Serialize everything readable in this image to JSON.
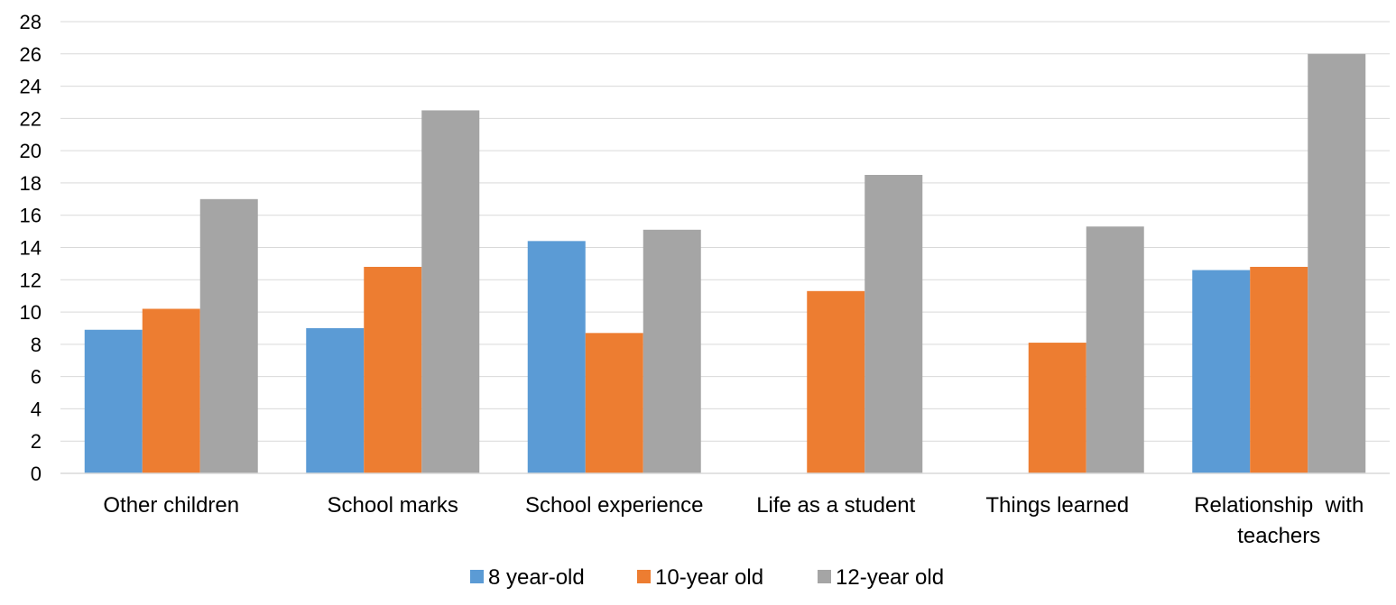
{
  "chart_data": {
    "type": "bar",
    "title": "",
    "xlabel": "",
    "ylabel": "",
    "ylim": [
      0,
      28
    ],
    "yticks": [
      0,
      2,
      4,
      6,
      8,
      10,
      12,
      14,
      16,
      18,
      20,
      22,
      24,
      26,
      28
    ],
    "grid": true,
    "legend_position": "bottom",
    "categories": [
      [
        "Other children"
      ],
      [
        "School marks"
      ],
      [
        "School experience"
      ],
      [
        "Life as a student"
      ],
      [
        "Things learned"
      ],
      [
        "Relationship  with",
        "teachers"
      ]
    ],
    "series": [
      {
        "name": "8 year-old",
        "color": "#5B9BD5",
        "values": [
          8.9,
          9.0,
          14.4,
          null,
          null,
          12.6
        ]
      },
      {
        "name": "10-year old",
        "color": "#ED7D31",
        "values": [
          10.2,
          12.8,
          8.7,
          11.3,
          8.1,
          12.8
        ]
      },
      {
        "name": "12-year old",
        "color": "#A5A5A5",
        "values": [
          17.0,
          22.5,
          15.1,
          18.5,
          15.3,
          26.0
        ]
      }
    ]
  }
}
